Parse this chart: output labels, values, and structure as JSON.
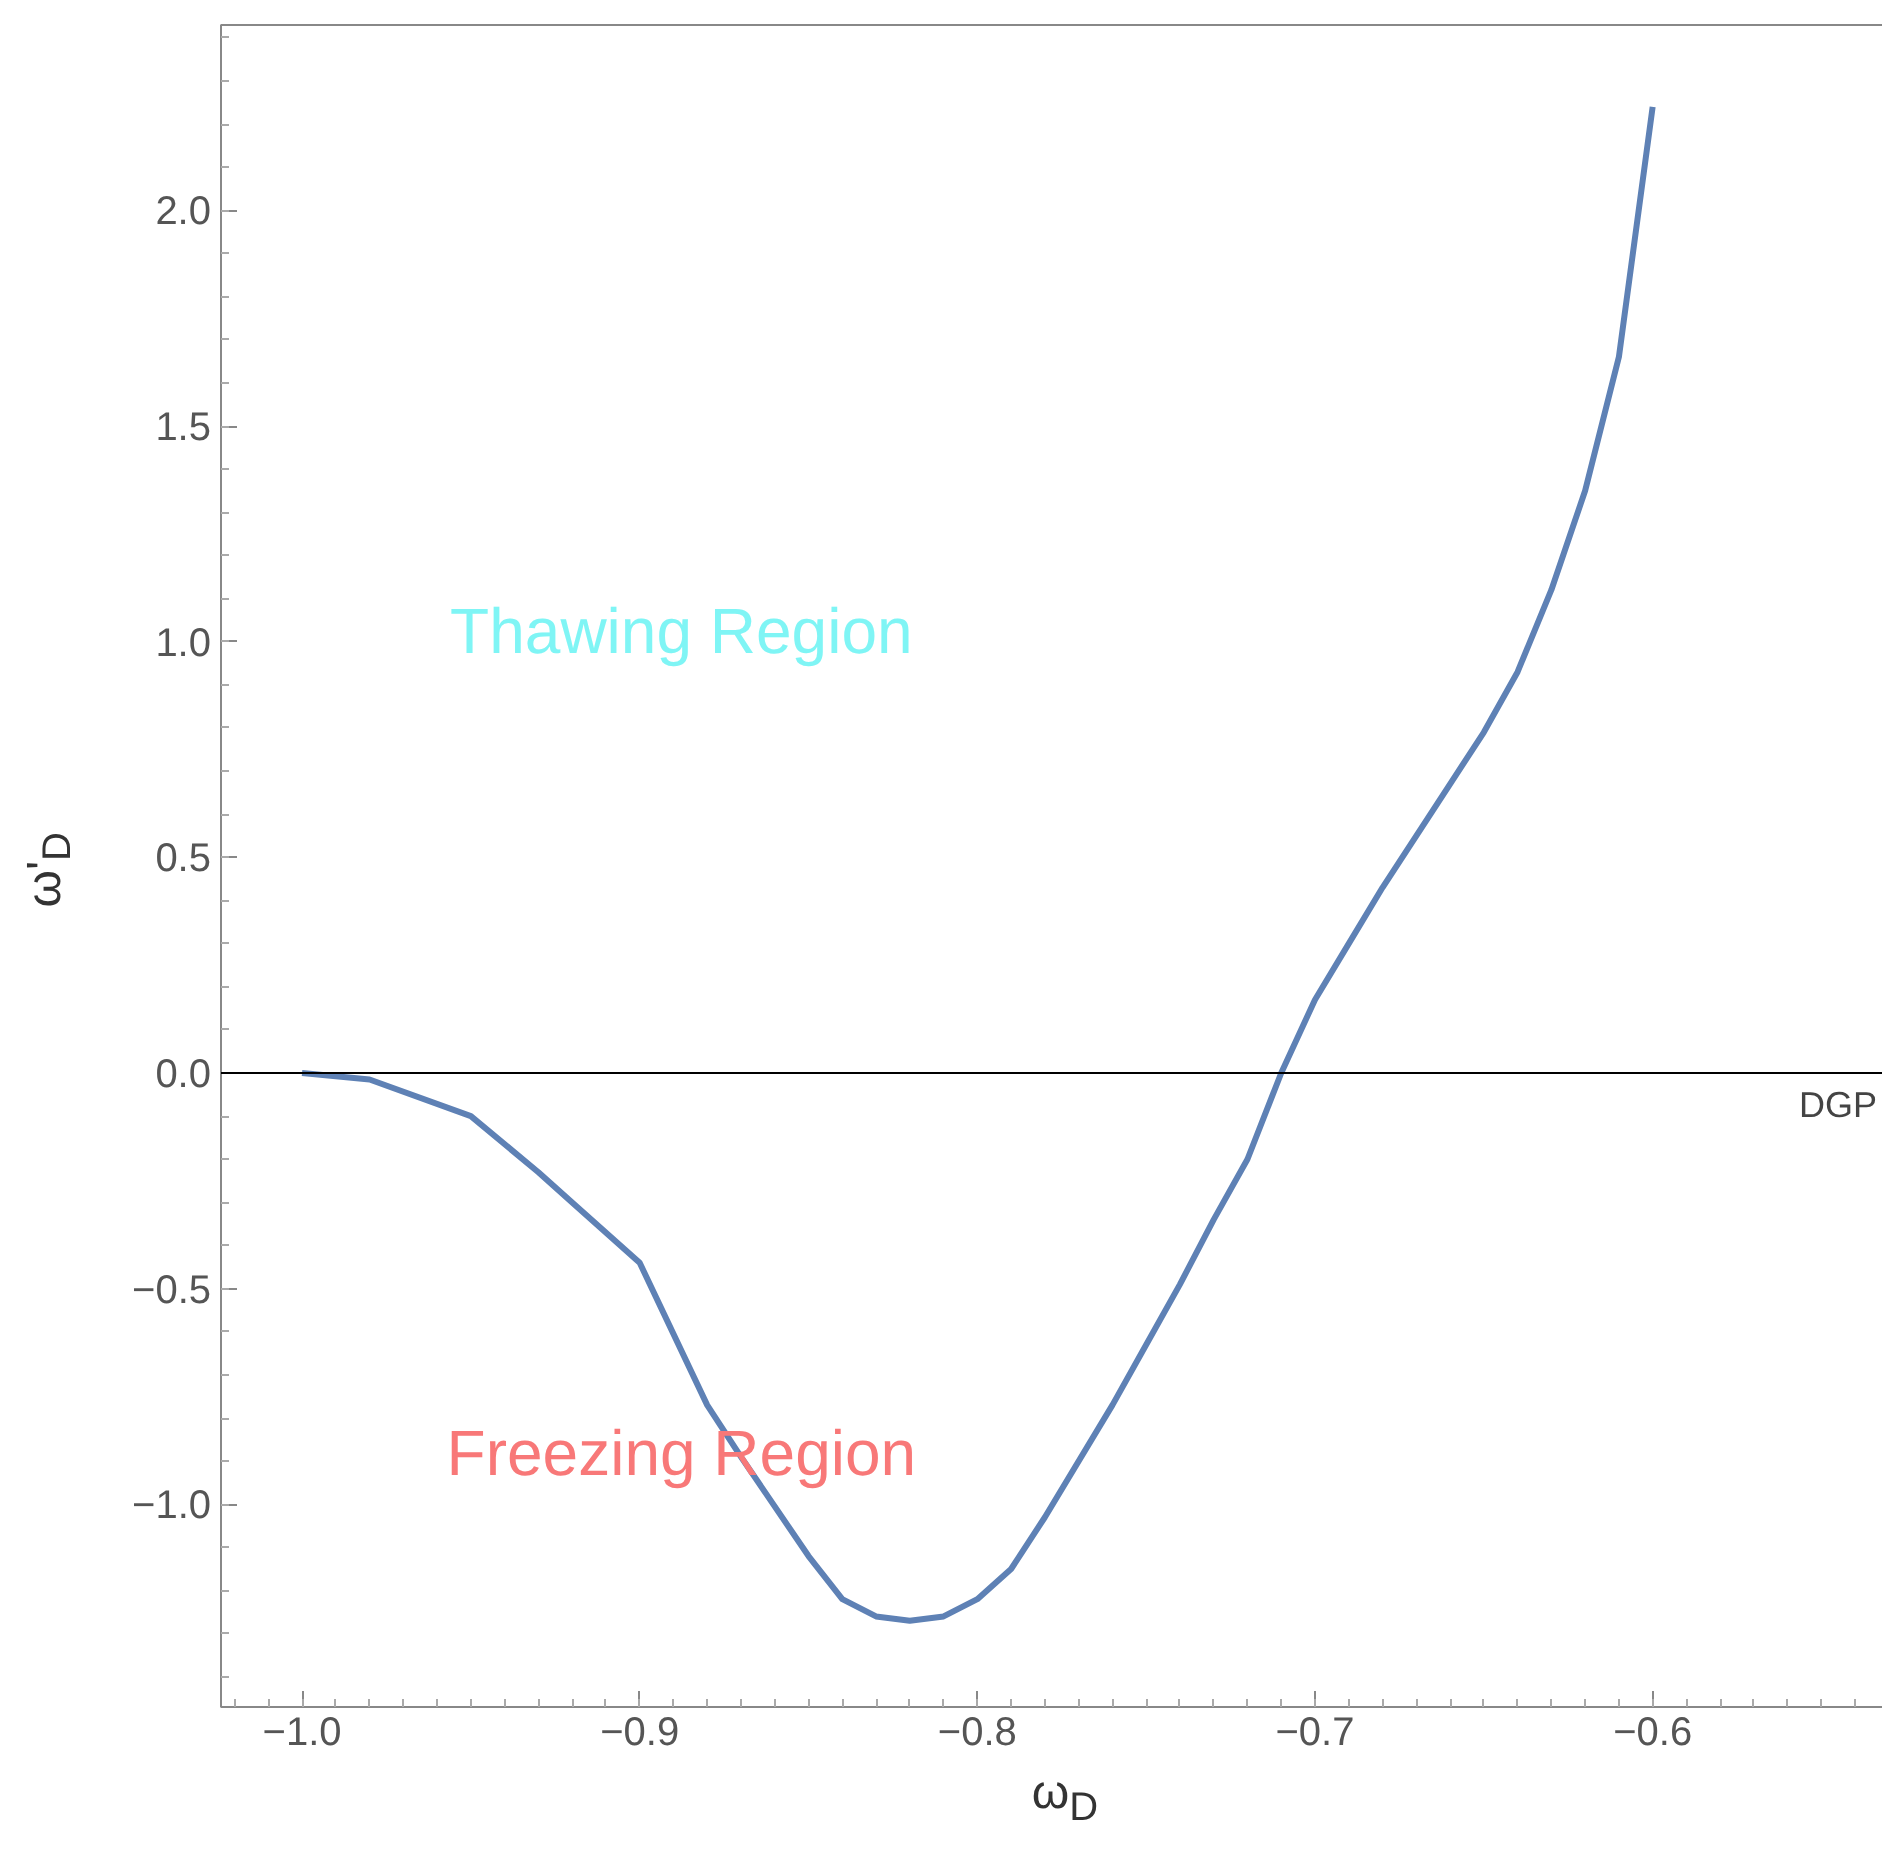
{
  "chart_data": {
    "type": "line",
    "xlabel": "ω$_{D}$",
    "ylabel": "ω'$_{D}$",
    "x": [
      -1.0,
      -0.98,
      -0.95,
      -0.93,
      -0.92,
      -0.9,
      -0.88,
      -0.87,
      -0.85,
      -0.84,
      -0.83,
      -0.82,
      -0.81,
      -0.8,
      -0.79,
      -0.78,
      -0.76,
      -0.75,
      -0.74,
      -0.73,
      -0.72,
      -0.71,
      -0.7,
      -0.69,
      -0.68,
      -0.67,
      -0.66,
      -0.65,
      -0.64,
      -0.63,
      -0.62,
      -0.61,
      -0.6
    ],
    "series": [
      {
        "color": "#5e81b5",
        "values": [
          0.0,
          -0.015,
          -0.1,
          -0.23,
          -0.3,
          -0.44,
          -0.77,
          -0.89,
          -1.12,
          -1.22,
          -1.26,
          -1.27,
          -1.26,
          -1.22,
          -1.15,
          -1.03,
          -0.77,
          -0.63,
          -0.49,
          -0.34,
          -0.2,
          0.0,
          0.17,
          0.3,
          0.43,
          0.55,
          0.67,
          0.79,
          0.93,
          1.12,
          1.35,
          1.66,
          2.24
        ]
      }
    ],
    "xlim": [
      -1.024,
      -0.53
    ],
    "ylim": [
      -1.47,
      2.43
    ],
    "xticks": [
      {
        "value": -1.0,
        "label": "−1.0"
      },
      {
        "value": -0.9,
        "label": "−0.9"
      },
      {
        "value": -0.8,
        "label": "−0.8"
      },
      {
        "value": -0.7,
        "label": "−0.7"
      },
      {
        "value": -0.6,
        "label": "−0.6"
      }
    ],
    "yticks": [
      {
        "value": -1.0,
        "label": "−1.0"
      },
      {
        "value": -0.5,
        "label": "−0.5"
      },
      {
        "value": 0.0,
        "label": "0.0"
      },
      {
        "value": 0.5,
        "label": "0.5"
      },
      {
        "value": 1.0,
        "label": "1.0"
      },
      {
        "value": 1.5,
        "label": "1.5"
      },
      {
        "value": 2.0,
        "label": "2.0"
      }
    ],
    "ref_lines": [
      {
        "axis": "y",
        "value": 0,
        "label": "DGP",
        "color": "#000000"
      }
    ],
    "annotations": [
      "Thawing Region",
      "Freezing Region"
    ],
    "grid": false,
    "line_style": "solid",
    "marker": "none"
  }
}
